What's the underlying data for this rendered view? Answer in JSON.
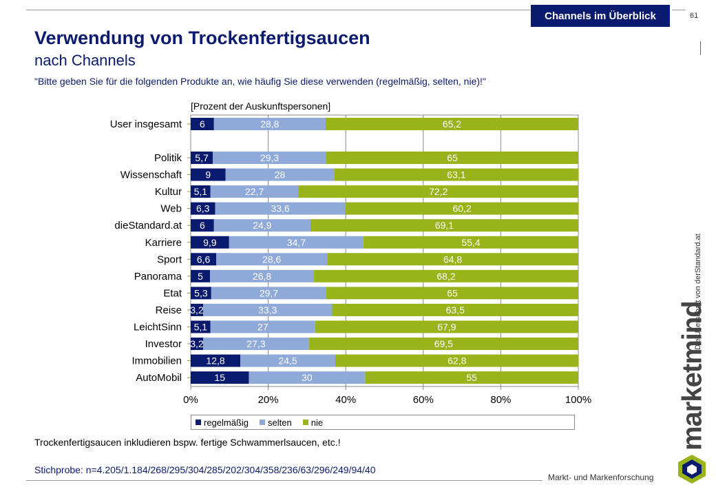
{
  "header": {
    "section_tab": "Channels im Überblick",
    "page_number": "61",
    "title": "Verwendung von Trockenfertigsaucen",
    "subtitle": "nach Channels",
    "question": "\"Bitte geben Sie für die folgenden Produkte an, wie häufig Sie diese verwenden (regelmäßig, selten, nie)!\""
  },
  "sidebar": {
    "credit": "Die Userschaft von derStandard.at",
    "brand": "marketmind",
    "brand_sub": "Markt- und Markenforschung"
  },
  "footer": {
    "note": "Trockenfertigsaucen inkludieren bspw. fertige Schwammerlsaucen, etc.!",
    "sample": "Stichprobe: n=4.205/1.184/268/295/304/285/202/304/358/236/63/296/249/94/40"
  },
  "colors": {
    "regelmaessig": "#0a1a6e",
    "selten": "#8fa9d9",
    "nie": "#99b31a",
    "title": "#0a1a6e"
  },
  "chart_data": {
    "type": "bar",
    "orientation": "horizontal",
    "stacked": true,
    "unit_label": "[Prozent der Auskunftspersonen]",
    "categories": [
      "User insgesamt",
      "Politik",
      "Wissenschaft",
      "Kultur",
      "Web",
      "dieStandard.at",
      "Karriere",
      "Sport",
      "Panorama",
      "Etat",
      "Reise",
      "LeichtSinn",
      "Investor",
      "Immobilien",
      "AutoMobil"
    ],
    "series": [
      {
        "name": "regelmäßig",
        "values": [
          6,
          5.7,
          9,
          5.1,
          6.3,
          6,
          9.9,
          6.6,
          5,
          5.3,
          3.2,
          5.1,
          3.2,
          12.8,
          15
        ]
      },
      {
        "name": "selten",
        "values": [
          28.8,
          29.3,
          28,
          22.7,
          33.6,
          24.9,
          34.7,
          28.6,
          26.8,
          29.7,
          33.3,
          27,
          27.3,
          24.5,
          30
        ]
      },
      {
        "name": "nie",
        "values": [
          65.2,
          65,
          63.1,
          72.2,
          60.2,
          69.1,
          55.4,
          64.8,
          68.2,
          65,
          63.5,
          67.9,
          69.5,
          62.8,
          55
        ]
      }
    ],
    "value_labels": [
      [
        "6",
        "28,8",
        "65,2"
      ],
      [
        "5,7",
        "29,3",
        "65"
      ],
      [
        "9",
        "28",
        "63,1"
      ],
      [
        "5,1",
        "22,7",
        "72,2"
      ],
      [
        "6,3",
        "33,6",
        "60,2"
      ],
      [
        "6",
        "24,9",
        "69,1"
      ],
      [
        "9,9",
        "34,7",
        "55,4"
      ],
      [
        "6,6",
        "28,6",
        "64,8"
      ],
      [
        "5",
        "26,8",
        "68,2"
      ],
      [
        "5,3",
        "29,7",
        "65"
      ],
      [
        "3,2",
        "33,3",
        "63,5"
      ],
      [
        "5,1",
        "27",
        "67,9"
      ],
      [
        "3,2",
        "27,3",
        "69,5"
      ],
      [
        "12,8",
        "24,5",
        "62,8"
      ],
      [
        "15",
        "30",
        "55"
      ]
    ],
    "x_ticks": [
      "0%",
      "20%",
      "40%",
      "60%",
      "80%",
      "100%"
    ],
    "xlim": [
      0,
      100
    ],
    "grid": true,
    "legend_position": "bottom"
  }
}
